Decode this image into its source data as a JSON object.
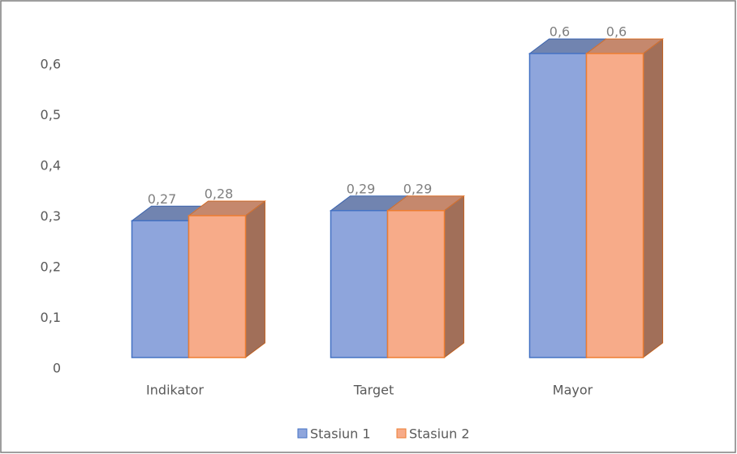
{
  "chart_data": {
    "type": "bar3d",
    "categories": [
      "Indikator",
      "Target",
      "Mayor"
    ],
    "series": [
      {
        "name": "Stasiun 1",
        "color": "#8ea5dc",
        "values": [
          0.27,
          0.29,
          0.6
        ],
        "value_labels": [
          "0,27",
          "0,29",
          "0,6"
        ]
      },
      {
        "name": "Stasiun 2",
        "color": "#f7ab89",
        "values": [
          0.28,
          0.29,
          0.6
        ],
        "value_labels": [
          "0,28",
          "0,29",
          "0,6"
        ]
      }
    ],
    "ylim": [
      0,
      0.6
    ],
    "yticks": [
      0,
      {
        "value": 0.1,
        "label": "0,1"
      },
      {
        "value": 0.2,
        "label": "0,2"
      },
      {
        "value": 0.3,
        "label": "0,3"
      },
      {
        "value": 0.4,
        "label": "0,4"
      },
      {
        "value": 0.5,
        "label": "0,5"
      },
      {
        "value": 0.6,
        "label": "0,6"
      }
    ],
    "grid": false,
    "legend": "bottom"
  }
}
